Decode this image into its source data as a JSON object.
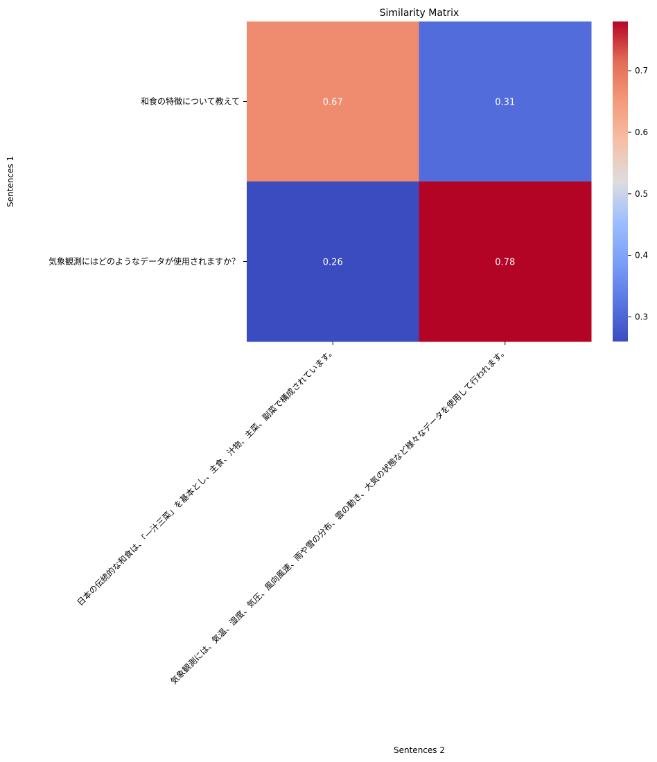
{
  "chart_data": {
    "type": "heatmap",
    "title": "Similarity Matrix",
    "xlabel": "Sentences 2",
    "ylabel": "Sentences 1",
    "rows": [
      "和食の特徴について教えて",
      "気象観測にはどのようなデータが使用されますか？"
    ],
    "columns": [
      "日本の伝統的な和食は、「一汁三菜」を基本とし、主食、汁物、主菜、副菜で構成されています。",
      "気象観測には、気温、湿度、気圧、風向風速、雨や雪の分布、雲の動き、大気の状態など様々なデータを使用して行われます。"
    ],
    "values": [
      [
        0.67,
        0.31
      ],
      [
        0.26,
        0.78
      ]
    ],
    "value_labels": [
      [
        "0.67",
        "0.31"
      ],
      [
        "0.26",
        "0.78"
      ]
    ],
    "colormap": "coolwarm",
    "vmin": 0.26,
    "vmax": 0.78,
    "colorbar_ticks": [
      0.3,
      0.4,
      0.5,
      0.6,
      0.7
    ],
    "colorbar_tick_labels": [
      "0.3",
      "0.4",
      "0.5",
      "0.6",
      "0.7"
    ]
  }
}
